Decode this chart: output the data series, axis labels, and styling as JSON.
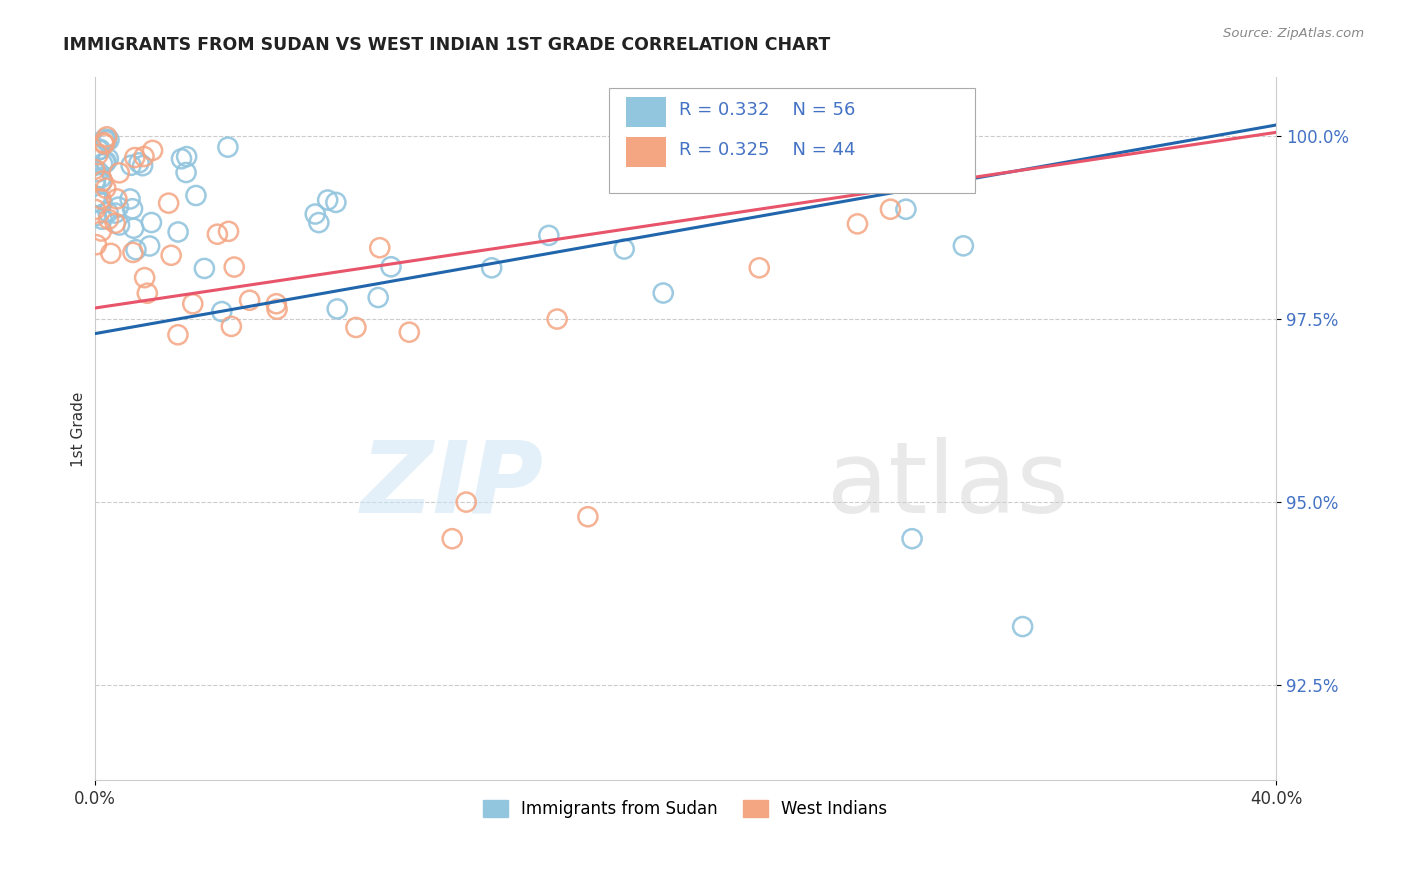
{
  "title": "IMMIGRANTS FROM SUDAN VS WEST INDIAN 1ST GRADE CORRELATION CHART",
  "source": "Source: ZipAtlas.com",
  "ylabel": "1st Grade",
  "ytick_values": [
    92.5,
    95.0,
    97.5,
    100.0
  ],
  "legend_label1": "Immigrants from Sudan",
  "legend_label2": "West Indians",
  "R1": "0.332",
  "N1": "56",
  "R2": "0.325",
  "N2": "44",
  "blue_scatter_color": "#92c5de",
  "pink_scatter_color": "#f4a582",
  "blue_line_color": "#2166ac",
  "pink_line_color": "#e8546a",
  "ytick_color": "#4472c4",
  "grid_color": "#cccccc",
  "title_color": "#222222",
  "source_color": "#888888",
  "xmin": 0.0,
  "xmax": 40.0,
  "ymin": 91.2,
  "ymax": 100.8,
  "blue_line_x": [
    0.0,
    40.0
  ],
  "blue_line_y": [
    97.3,
    100.15
  ],
  "pink_line_x": [
    0.0,
    40.0
  ],
  "pink_line_y": [
    97.65,
    100.05
  ]
}
